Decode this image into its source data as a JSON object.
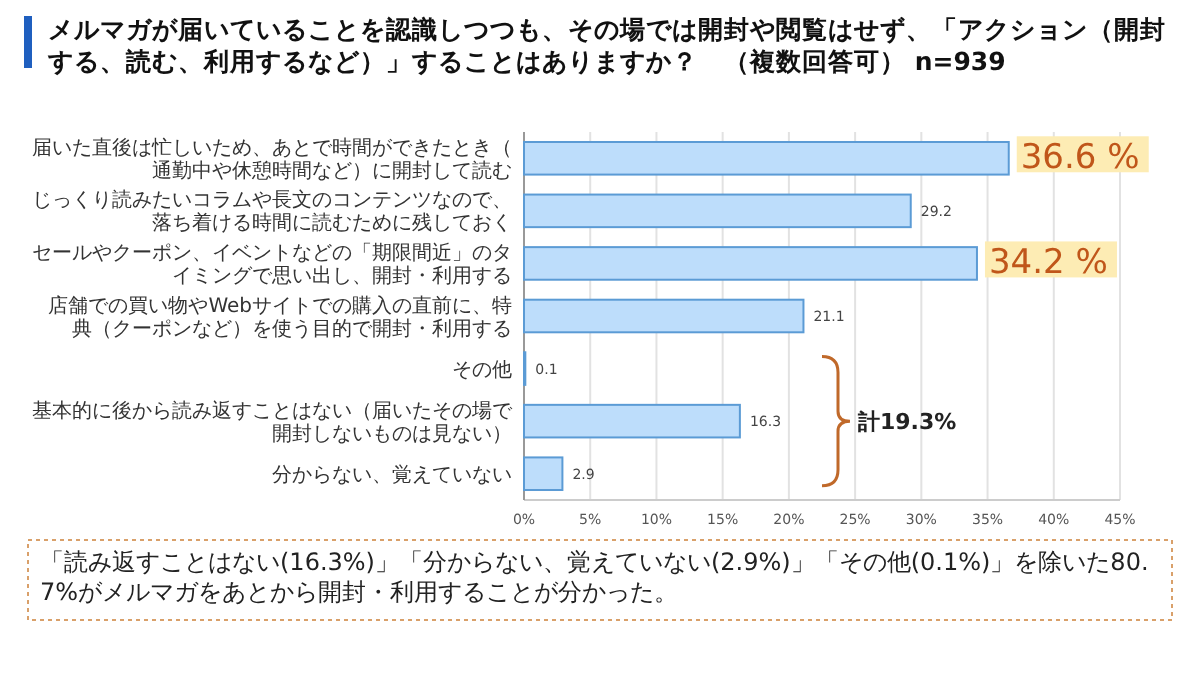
{
  "chart_data": {
    "type": "bar",
    "orientation": "horizontal",
    "title": "メルマガが届いていることを認識しつつも、その場では開封や閲覧はせず、「アクション（開封する、読む、利用するなど）」することはありますか？　（複数回答可）  n=939",
    "categories": [
      "届いた直後は忙しいため、あとで時間ができたとき（通勤中や休憩時間など）に開封して読む",
      "じっくり読みたいコラムや長文のコンテンツなので、落ち着ける時間に読むために残しておく",
      "セールやクーポン、イベントなどの「期限間近」のタイミングで思い出し、開封・利用する",
      "店舗での買い物やWebサイトでの購入の直前に、特典（クーポンなど）を使う目的で開封・利用する",
      "その他",
      "基本的に後から読み返すことはない（届いたその場で開封しないものは見ない）",
      "分からない、覚えていない"
    ],
    "values": [
      36.6,
      29.2,
      34.2,
      21.1,
      0.1,
      16.3,
      2.9
    ],
    "color": "#bdddfb",
    "value_labels": [
      null,
      "29.2",
      null,
      "21.1",
      "0.1",
      "16.3",
      "2.9"
    ],
    "xlim": [
      0,
      45
    ],
    "xticks": [
      {
        "value": 0,
        "label": "0%"
      },
      {
        "value": 5,
        "label": "5%"
      },
      {
        "value": 10,
        "label": "10%"
      },
      {
        "value": 15,
        "label": "15%"
      },
      {
        "value": 20,
        "label": "20%"
      },
      {
        "value": 25,
        "label": "25%"
      },
      {
        "value": 30,
        "label": "30%"
      },
      {
        "value": 35,
        "label": "35%"
      },
      {
        "value": 40,
        "label": "40%"
      },
      {
        "value": 45,
        "label": "45%"
      }
    ],
    "grid": "x",
    "annotations": [
      {
        "text": "36.6 %",
        "x": 36.6,
        "y": "届いた直後は忙しいため、あとで時間ができたとき（通勤中や休憩時間など）に開封して読む"
      },
      {
        "text": "34.2 %",
        "x": 34.2,
        "y": "セールやクーポン、イベントなどの「期限間近」のタイミングで思い出し、開封・利用する"
      },
      "計19.3%",
      "「読み返すことはない(16.3%)」「分からない、覚えていない(2.9%)」「その他(0.1%)」を除いた80.7%がメルマガをあとから開封・利用することが分かった。"
    ]
  }
}
